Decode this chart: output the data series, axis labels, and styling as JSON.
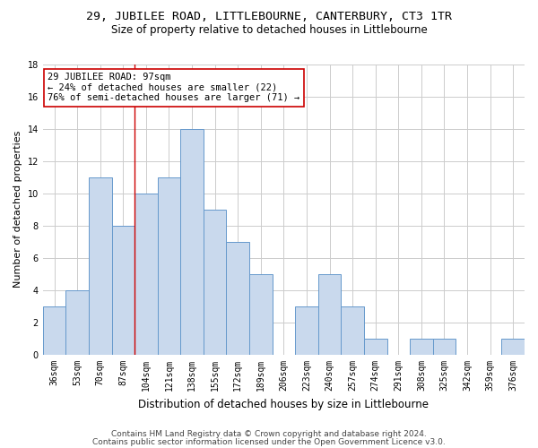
{
  "title_line1": "29, JUBILEE ROAD, LITTLEBOURNE, CANTERBURY, CT3 1TR",
  "title_line2": "Size of property relative to detached houses in Littlebourne",
  "xlabel": "Distribution of detached houses by size in Littlebourne",
  "ylabel": "Number of detached properties",
  "categories": [
    "36sqm",
    "53sqm",
    "70sqm",
    "87sqm",
    "104sqm",
    "121sqm",
    "138sqm",
    "155sqm",
    "172sqm",
    "189sqm",
    "206sqm",
    "223sqm",
    "240sqm",
    "257sqm",
    "274sqm",
    "291sqm",
    "308sqm",
    "325sqm",
    "342sqm",
    "359sqm",
    "376sqm"
  ],
  "values": [
    3,
    4,
    11,
    8,
    10,
    11,
    14,
    9,
    7,
    5,
    0,
    3,
    5,
    3,
    1,
    0,
    1,
    1,
    0,
    0,
    1
  ],
  "bar_color": "#c9d9ed",
  "bar_edge_color": "#6699cc",
  "annotation_line1": "29 JUBILEE ROAD: 97sqm",
  "annotation_line2": "← 24% of detached houses are smaller (22)",
  "annotation_line3": "76% of semi-detached houses are larger (71) →",
  "annotation_box_color": "#ffffff",
  "annotation_box_edge_color": "#cc0000",
  "vline_x": 3.5,
  "vline_color": "#cc0000",
  "ylim": [
    0,
    18
  ],
  "yticks": [
    0,
    2,
    4,
    6,
    8,
    10,
    12,
    14,
    16,
    18
  ],
  "grid_color": "#cccccc",
  "background_color": "#ffffff",
  "footer_line1": "Contains HM Land Registry data © Crown copyright and database right 2024.",
  "footer_line2": "Contains public sector information licensed under the Open Government Licence v3.0.",
  "title_fontsize": 9.5,
  "subtitle_fontsize": 8.5,
  "axis_label_fontsize": 8,
  "tick_fontsize": 7,
  "annotation_fontsize": 7.5,
  "footer_fontsize": 6.5
}
